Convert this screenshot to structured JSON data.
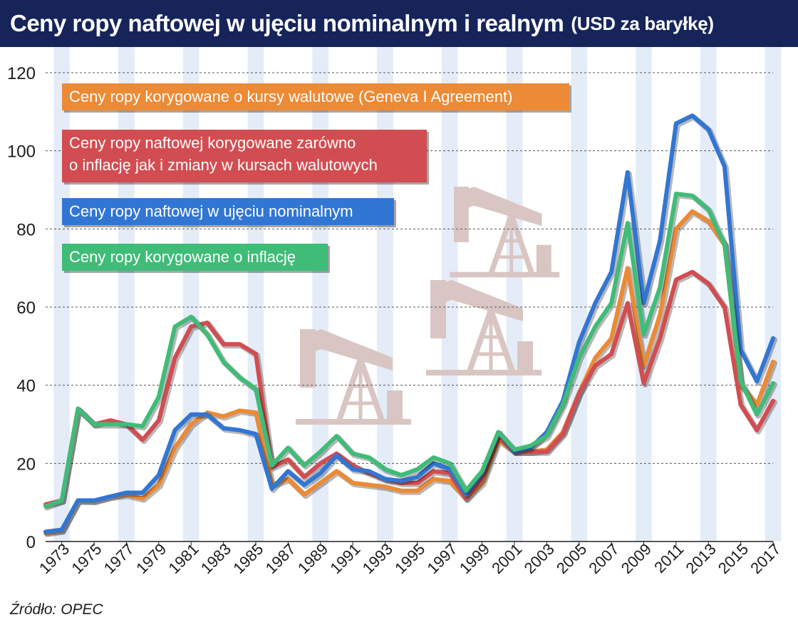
{
  "header": {
    "title": "Ceny ropy naftowej w ujęciu nominalnym i realnym",
    "unit": "(USD za baryłkę)"
  },
  "source": "Źródło: OPEC",
  "legend": {
    "geneva": "Ceny ropy korygowane o kursy walutowe (Geneva I Agreement)",
    "both_line1": "Ceny ropy naftowej korygowane zarówno",
    "both_line2": "o inflację jak i zmiany w kursach walutowych",
    "nominal": "Ceny ropy naftowej w ujęciu nominalnym",
    "inflation": "Ceny ropy korygowane o inflację"
  },
  "colors": {
    "title_bg": "#16245a",
    "geneva": "#ec8a35",
    "both": "#d24d51",
    "nominal": "#3176d3",
    "inflation": "#3fbc78",
    "band": "#d9e4f3",
    "pump": "#d9c6c3"
  },
  "chart_data": {
    "type": "line",
    "x_tick_labels": [
      "1973",
      "1975",
      "1977",
      "1979",
      "1981",
      "1983",
      "1985",
      "1987",
      "1989",
      "1991",
      "1993",
      "1995",
      "1997",
      "1999",
      "2001",
      "2003",
      "2005",
      "2007",
      "2009",
      "2011",
      "2013",
      "2015",
      "2017"
    ],
    "y_ticks": [
      0,
      20,
      40,
      60,
      80,
      100,
      120
    ],
    "ylim": [
      0,
      120
    ],
    "xlim": [
      1972,
      2017
    ],
    "grid": true,
    "x": [
      1972,
      1973,
      1974,
      1975,
      1976,
      1977,
      1978,
      1979,
      1980,
      1981,
      1982,
      1983,
      1984,
      1985,
      1986,
      1987,
      1988,
      1989,
      1990,
      1991,
      1992,
      1993,
      1994,
      1995,
      1996,
      1997,
      1998,
      1999,
      2000,
      2001,
      2002,
      2003,
      2004,
      2005,
      2006,
      2007,
      2008,
      2009,
      2010,
      2011,
      2012,
      2013,
      2014,
      2015,
      2016,
      2017
    ],
    "series": [
      {
        "name": "Ceny ropy korygowane o kursy walutowe (Geneva I Agreement)",
        "key": "geneva",
        "values": [
          2.2,
          2.8,
          10.5,
          10.4,
          11.5,
          12,
          11,
          14.5,
          24,
          30,
          33,
          32,
          33.5,
          33,
          14.5,
          16,
          12,
          15,
          18,
          15,
          14.5,
          14,
          13,
          13,
          16,
          15.5,
          11,
          15,
          26,
          23,
          23,
          23.5,
          28,
          38,
          47,
          52,
          70,
          45,
          58,
          80,
          84.5,
          82,
          76,
          40,
          35,
          46
        ]
      },
      {
        "name": "Ceny ropy naftowej korygowane zarówno o inflację jak i zmiany w kursach walutowych",
        "key": "both",
        "values": [
          9.5,
          10.5,
          34,
          30,
          31,
          30,
          26,
          31,
          47,
          55,
          56,
          50.5,
          50.5,
          48,
          19,
          21,
          16.5,
          20,
          22.5,
          19.5,
          17.5,
          16,
          15,
          15,
          18,
          17.5,
          11,
          16,
          27,
          23,
          23,
          23,
          27.5,
          38,
          45,
          48,
          61,
          40.5,
          52,
          67,
          69,
          66,
          60,
          35,
          28.5,
          36
        ]
      },
      {
        "name": "Ceny ropy naftowej w ujęciu nominalnym",
        "key": "nominal",
        "values": [
          2.5,
          3,
          10.5,
          10.5,
          11.5,
          12.5,
          12.5,
          17,
          28.5,
          32.5,
          32.5,
          29,
          28.5,
          27.5,
          13.5,
          18,
          14.5,
          17.5,
          22,
          18.5,
          18,
          16,
          15.5,
          16.5,
          20,
          18.5,
          12,
          17.5,
          28,
          23,
          24,
          28,
          36,
          51,
          61,
          69,
          94.5,
          61,
          77,
          107,
          109,
          105.5,
          96,
          49,
          41,
          52
        ]
      },
      {
        "name": "Ceny ropy korygowane o inflację",
        "key": "inflation",
        "values": [
          9,
          10.5,
          34,
          30,
          30,
          30,
          29.5,
          37,
          55,
          57.5,
          53,
          46,
          42,
          39,
          19.5,
          24,
          19.5,
          23,
          27,
          22.5,
          21.5,
          18.5,
          17,
          18.5,
          21.5,
          20,
          13,
          18,
          28,
          23.5,
          24.5,
          27,
          35,
          47,
          55,
          61,
          81.5,
          53,
          65,
          89,
          88.5,
          85,
          76,
          41,
          32.5,
          40.5
        ]
      }
    ]
  }
}
